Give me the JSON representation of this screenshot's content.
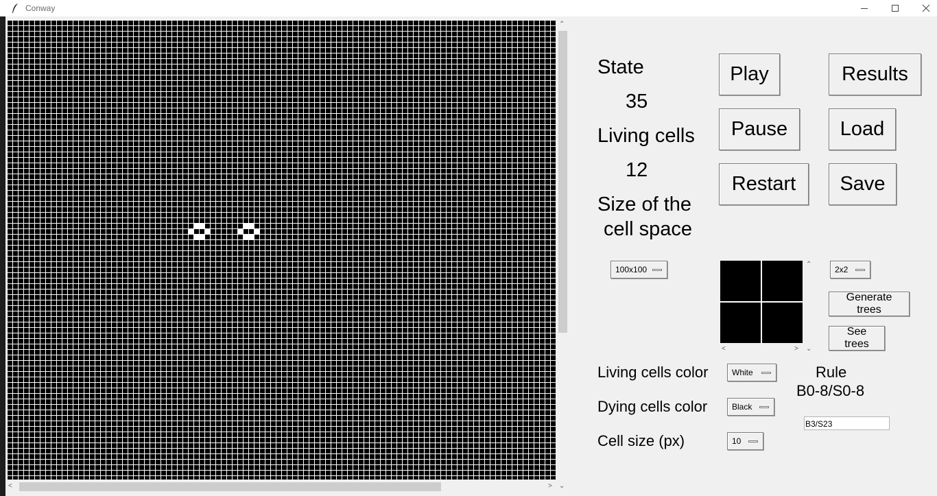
{
  "window": {
    "title": "Conway",
    "app_icon": "feather-icon",
    "controls": [
      "minimize-icon",
      "maximize-icon",
      "close-icon"
    ]
  },
  "grid": {
    "cell_colors": {
      "living": "#ffffff",
      "dying": "#000000"
    },
    "living_cells": [
      [
        34,
        37
      ],
      [
        35,
        37
      ],
      [
        33,
        38
      ],
      [
        36,
        38
      ],
      [
        34,
        39
      ],
      [
        35,
        39
      ],
      [
        43,
        37
      ],
      [
        44,
        37
      ],
      [
        42,
        38
      ],
      [
        45,
        38
      ],
      [
        43,
        39
      ],
      [
        44,
        39
      ]
    ]
  },
  "stats": {
    "state_label": "State",
    "state_value": "35",
    "living_label": "Living cells",
    "living_value": "12",
    "size_label_line1": "Size of the",
    "size_label_line2": "cell space"
  },
  "buttons": {
    "play": "Play",
    "pause": "Pause",
    "restart": "Restart",
    "results": "Results",
    "load": "Load",
    "save": "Save",
    "generate_trees": "Generate trees",
    "see_trees": "See trees"
  },
  "selects": {
    "space_size": "100x100",
    "tree_size": "2x2",
    "living_color": "White",
    "dying_color": "Black",
    "cell_size": "10"
  },
  "labels": {
    "living_color": "Living cells color",
    "dying_color": "Dying cells color",
    "cell_size": "Cell size (px)",
    "rule_title": "Rule",
    "rule_value": "B0-8/S0-8"
  },
  "rule_input": {
    "value": "B3/S23"
  }
}
